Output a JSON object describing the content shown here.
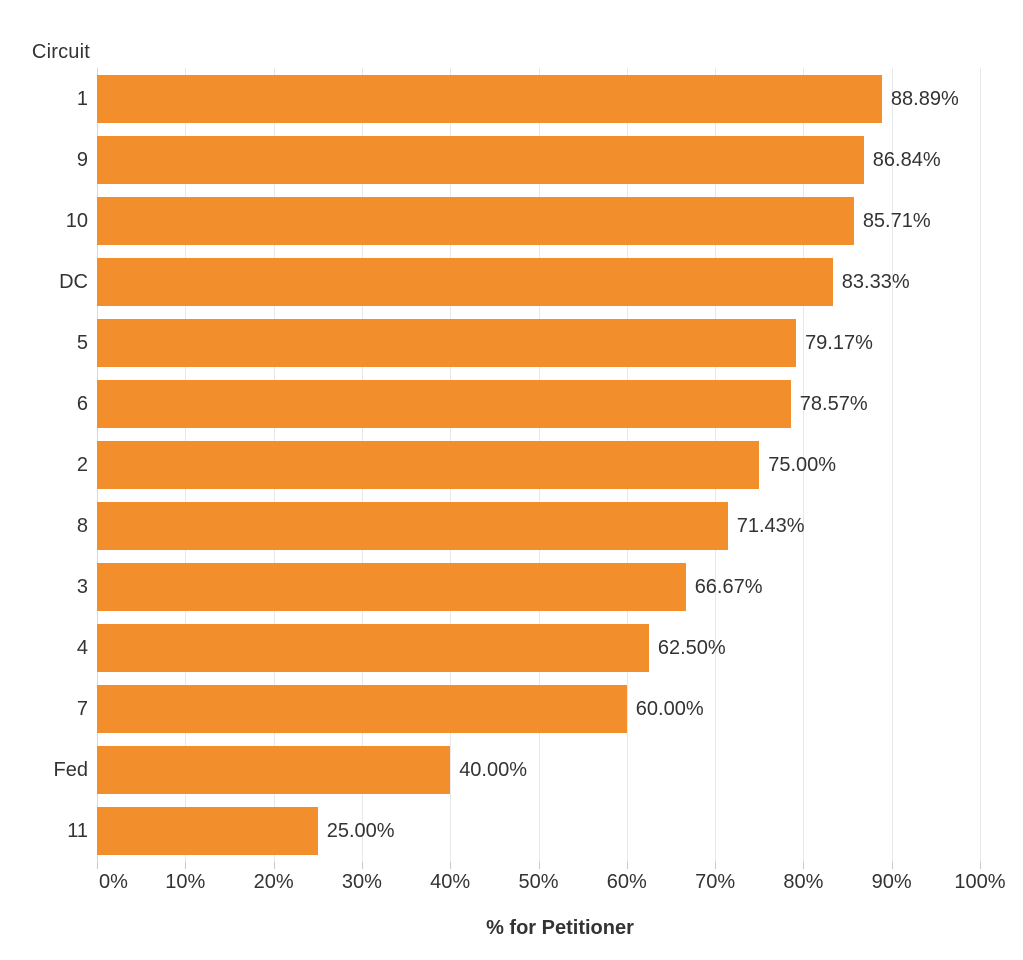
{
  "chart_data": {
    "type": "bar",
    "orientation": "horizontal",
    "field_label": "Circuit",
    "xlabel": "% for Petitioner",
    "categories": [
      "1",
      "9",
      "10",
      "DC",
      "5",
      "6",
      "2",
      "8",
      "3",
      "4",
      "7",
      "Fed",
      "11"
    ],
    "values": [
      88.89,
      86.84,
      85.71,
      83.33,
      79.17,
      78.57,
      75.0,
      71.43,
      66.67,
      62.5,
      60.0,
      40.0,
      25.0
    ],
    "value_labels": [
      "88.89%",
      "86.84%",
      "85.71%",
      "83.33%",
      "79.17%",
      "78.57%",
      "75.00%",
      "71.43%",
      "66.67%",
      "62.50%",
      "60.00%",
      "40.00%",
      "25.00%"
    ],
    "x_ticks": [
      0,
      10,
      20,
      30,
      40,
      50,
      60,
      70,
      80,
      90,
      100
    ],
    "x_tick_labels": [
      "0%",
      "10%",
      "20%",
      "30%",
      "40%",
      "50%",
      "60%",
      "70%",
      "80%",
      "90%",
      "100%"
    ],
    "xlim": [
      0,
      104.9
    ],
    "grid": true,
    "legend": "none",
    "colors": {
      "bar": "#F28E2B",
      "label": "#333333",
      "gridline": "#e8e8e8",
      "zero_line": "#d8d8d8",
      "tick": "#c9c9c9"
    }
  }
}
